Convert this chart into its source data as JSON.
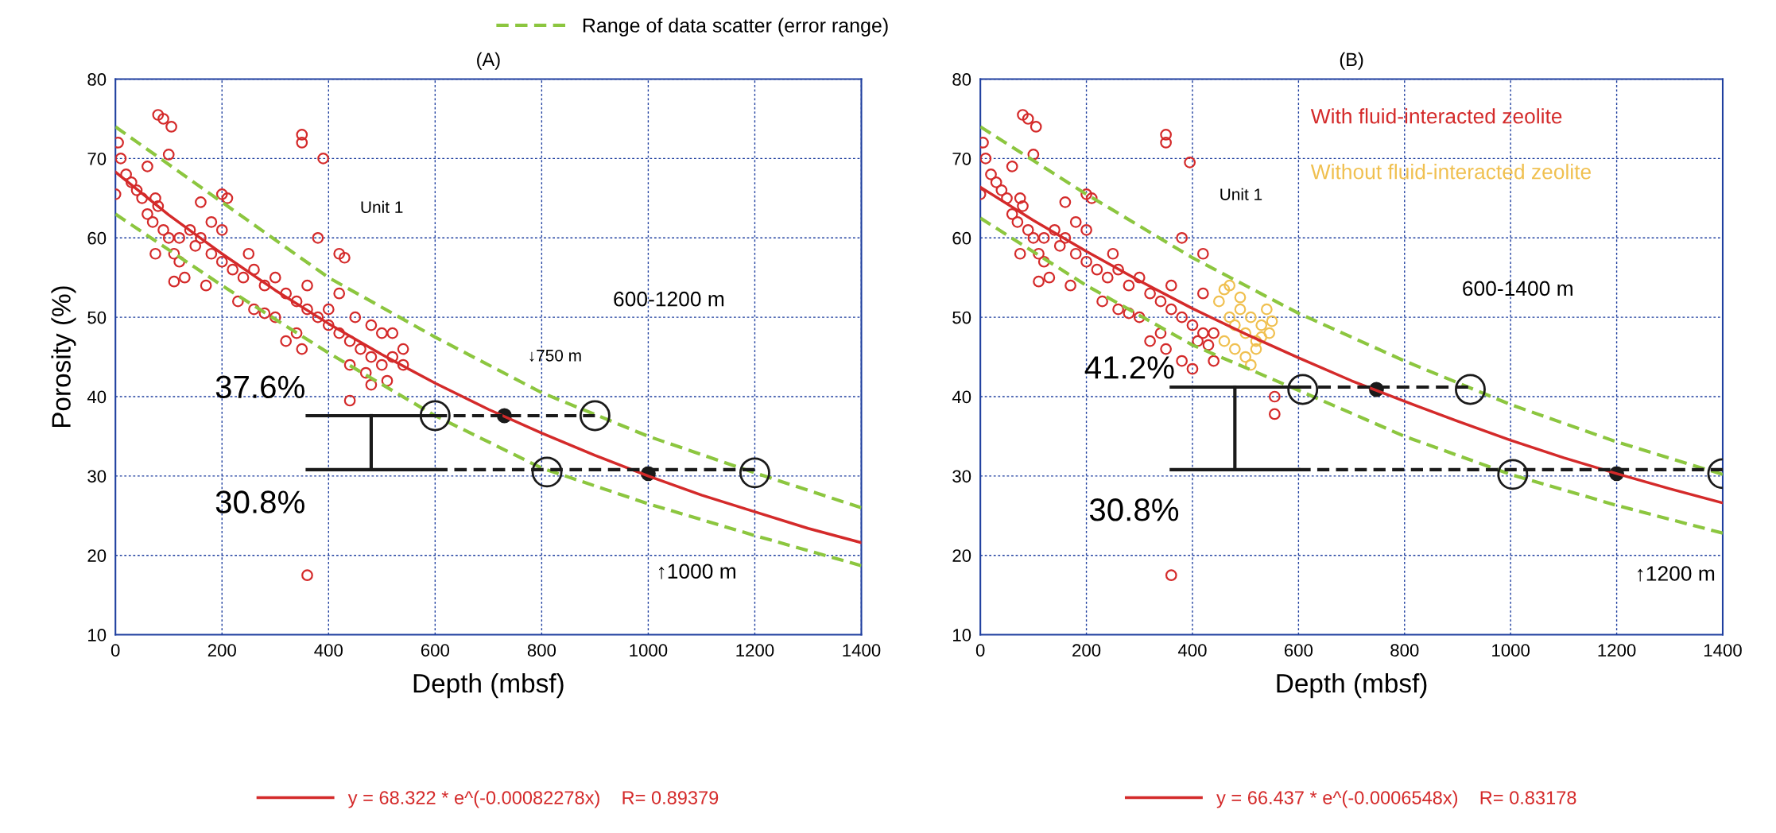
{
  "chart_data": [
    {
      "type": "scatter",
      "title": "(A)",
      "xlabel": "Depth (mbsf)",
      "ylabel": "Porosity (%)",
      "xlim": [
        0,
        1400
      ],
      "ylim": [
        10,
        80
      ],
      "xticks": [
        0,
        200,
        400,
        600,
        800,
        1000,
        1200,
        1400
      ],
      "yticks": [
        10,
        20,
        30,
        40,
        50,
        60,
        70,
        80
      ],
      "grid": true,
      "legend": "bottom",
      "series": [
        {
          "type": "scatter",
          "marker": "circle",
          "color": "#d42a2a",
          "x": [
            80,
            90,
            105,
            350,
            350,
            390,
            380,
            420,
            430,
            360,
            440,
            5,
            0,
            60,
            75,
            100,
            160,
            200,
            210,
            10,
            20,
            30,
            40,
            50,
            60,
            70,
            80,
            90,
            100,
            110,
            120,
            140,
            150,
            160,
            180,
            200,
            220,
            240,
            260,
            280,
            300,
            320,
            340,
            360,
            380,
            400,
            420,
            440,
            460,
            480,
            500,
            520,
            540,
            510,
            480,
            400,
            450,
            500,
            130,
            170,
            230,
            260,
            300,
            340,
            120,
            75,
            110,
            280,
            320,
            350,
            440,
            470,
            540,
            480,
            520,
            420,
            360,
            200,
            250,
            180
          ],
          "values": [
            75.5,
            75,
            74,
            73,
            72,
            70,
            60,
            58,
            57.5,
            17.5,
            39.5,
            72,
            65.5,
            69,
            65,
            70.5,
            64.5,
            65.5,
            65,
            70,
            68,
            67,
            66,
            65,
            63,
            62,
            64,
            61,
            60,
            58,
            60,
            61,
            59,
            60,
            58,
            57,
            56,
            55,
            56,
            54,
            55,
            53,
            52,
            51,
            50,
            49,
            48,
            47,
            46,
            45,
            44,
            45,
            44,
            42,
            41.5,
            51,
            50,
            48,
            55,
            54,
            52,
            51,
            50,
            48,
            57,
            58,
            54.5,
            50.5,
            47,
            46,
            44,
            43,
            46,
            49,
            48,
            53,
            54,
            61,
            58,
            62
          ]
        },
        {
          "type": "line",
          "name": "y = 68.322 * e^(-0.00082278x)    R= 0.89379",
          "color": "#d42a2a",
          "line_style": "solid",
          "marker": "none",
          "x": [
            0,
            100,
            200,
            300,
            400,
            500,
            600,
            700,
            800,
            900,
            1000,
            1100,
            1200,
            1300,
            1400
          ],
          "values": [
            68.3,
            62.9,
            58,
            53.4,
            49.2,
            45.3,
            41.7,
            38.4,
            35.4,
            32.6,
            30,
            27.6,
            25.5,
            23.4,
            21.6
          ]
        },
        {
          "type": "line",
          "name": "Range of data scatter (error range)",
          "color": "#8cc63f",
          "line_style": "dashed",
          "marker": "none",
          "x": [
            0,
            200,
            400,
            600,
            800,
            1000,
            1200,
            1400
          ],
          "values": [
            74,
            64.5,
            55,
            47.5,
            40.5,
            35,
            30.4,
            26
          ]
        },
        {
          "type": "line",
          "color": "#8cc63f",
          "line_style": "dashed",
          "marker": "none",
          "x": [
            0,
            200,
            400,
            600,
            800,
            1000,
            1200,
            1400
          ],
          "values": [
            63,
            54,
            45.5,
            37.6,
            31,
            26.5,
            22.5,
            18.7
          ]
        },
        {
          "type": "line",
          "color": "#1a1a1a",
          "line_style": "dashed",
          "marker": "none",
          "x": [
            600,
            900
          ],
          "values": [
            37.6,
            37.6
          ]
        },
        {
          "type": "line",
          "color": "#1a1a1a",
          "line_style": "dashed",
          "marker": "none",
          "x": [
            600,
            1200
          ],
          "values": [
            30.8,
            30.8
          ]
        },
        {
          "type": "line",
          "color": "#1a1a1a",
          "line_style": "solid",
          "marker": "none",
          "x": [
            360,
            600
          ],
          "values": [
            37.6,
            37.6
          ]
        },
        {
          "type": "line",
          "color": "#1a1a1a",
          "line_style": "solid",
          "marker": "none",
          "x": [
            360,
            600
          ],
          "values": [
            30.8,
            30.8
          ]
        },
        {
          "type": "line",
          "color": "#1a1a1a",
          "line_style": "solid",
          "marker": "none",
          "x": [
            480,
            480
          ],
          "values": [
            30.8,
            37.6
          ]
        },
        {
          "type": "scatter",
          "marker": "circle",
          "color": "#1a1a1a",
          "x": [
            600,
            900,
            810,
            1200
          ],
          "values": [
            37.6,
            37.6,
            30.5,
            30.4
          ]
        },
        {
          "type": "scatter",
          "marker": "circle",
          "color": "#1a1a1a",
          "x": [
            730,
            1000
          ],
          "values": [
            37.6,
            30.3
          ]
        }
      ],
      "annotations": [
        "Unit 1",
        "600-1200 m",
        "↓750 m",
        "↑1000 m",
        "37.6%",
        "30.8%"
      ]
    },
    {
      "type": "scatter",
      "title": "(B)",
      "xlabel": "Depth (mbsf)",
      "xlim": [
        0,
        1400
      ],
      "ylim": [
        10,
        80
      ],
      "xticks": [
        0,
        200,
        400,
        600,
        800,
        1000,
        1200,
        1400
      ],
      "yticks": [
        10,
        20,
        30,
        40,
        50,
        60,
        70,
        80
      ],
      "grid": true,
      "legend": "bottom",
      "series": [
        {
          "type": "scatter",
          "name": "With fluid-interacted zeolite",
          "marker": "circle",
          "color": "#d42a2a",
          "x": [
            80,
            90,
            105,
            350,
            350,
            395,
            380,
            420,
            360,
            555,
            555,
            400,
            380,
            440,
            5,
            0,
            60,
            75,
            100,
            160,
            200,
            210,
            10,
            20,
            30,
            40,
            50,
            60,
            70,
            80,
            90,
            100,
            110,
            120,
            140,
            150,
            160,
            180,
            200,
            220,
            240,
            260,
            280,
            300,
            320,
            340,
            360,
            380,
            400,
            420,
            440,
            130,
            170,
            230,
            260,
            300,
            340,
            120,
            75,
            110,
            280,
            320,
            350,
            420,
            360,
            200,
            250,
            180,
            410,
            430
          ],
          "values": [
            75.5,
            75,
            74,
            73,
            72,
            69.5,
            60,
            58,
            17.5,
            40,
            37.8,
            43.5,
            44.5,
            44.5,
            72,
            65.5,
            69,
            65,
            70.5,
            64.5,
            65.5,
            65,
            70,
            68,
            67,
            66,
            65,
            63,
            62,
            64,
            61,
            60,
            58,
            60,
            61,
            59,
            60,
            58,
            57,
            56,
            55,
            56,
            54,
            55,
            53,
            52,
            51,
            50,
            49,
            48,
            48,
            55,
            54,
            52,
            51,
            50,
            48,
            57,
            58,
            54.5,
            50.5,
            47,
            46,
            53,
            54,
            61,
            58,
            62,
            47,
            46.5
          ]
        },
        {
          "type": "scatter",
          "name": "Without fluid-interacted zeolite",
          "marker": "circle",
          "color": "#f0c050",
          "x": [
            450,
            460,
            470,
            480,
            490,
            500,
            510,
            520,
            530,
            540,
            550,
            460,
            480,
            500,
            510,
            520,
            470,
            490,
            530,
            545
          ],
          "values": [
            52,
            53.5,
            50,
            49,
            51,
            48,
            50,
            47,
            49,
            51,
            49.5,
            47,
            46,
            45,
            44,
            46,
            54,
            52.5,
            47.5,
            48
          ]
        },
        {
          "type": "line",
          "name": "y = 66.437 * e^(-0.0006548x)    R= 0.83178",
          "color": "#d42a2a",
          "line_style": "solid",
          "marker": "none",
          "x": [
            0,
            100,
            200,
            300,
            400,
            500,
            600,
            700,
            800,
            900,
            1000,
            1100,
            1200,
            1300,
            1400
          ],
          "values": [
            66.4,
            62.2,
            58.3,
            54.6,
            51.1,
            47.9,
            44.9,
            42,
            39.4,
            36.9,
            34.5,
            32.3,
            30.3,
            28.4,
            26.6
          ]
        },
        {
          "type": "line",
          "color": "#8cc63f",
          "line_style": "dashed",
          "marker": "none",
          "x": [
            0,
            200,
            400,
            600,
            800,
            1000,
            1200,
            1400
          ],
          "values": [
            74,
            65.5,
            57.5,
            50.5,
            44.5,
            39,
            34.3,
            30.2
          ]
        },
        {
          "type": "line",
          "color": "#8cc63f",
          "line_style": "dashed",
          "marker": "none",
          "x": [
            0,
            200,
            400,
            600,
            800,
            1000,
            1200,
            1400
          ],
          "values": [
            62.5,
            54,
            46.5,
            40.8,
            35,
            30.2,
            26.3,
            22.8
          ]
        },
        {
          "type": "line",
          "color": "#1a1a1a",
          "line_style": "dashed",
          "marker": "none",
          "x": [
            600,
            920
          ],
          "values": [
            41.2,
            41.2
          ]
        },
        {
          "type": "line",
          "color": "#1a1a1a",
          "line_style": "dashed",
          "marker": "none",
          "x": [
            600,
            1400
          ],
          "values": [
            30.8,
            30.8
          ]
        },
        {
          "type": "line",
          "color": "#1a1a1a",
          "line_style": "solid",
          "marker": "none",
          "x": [
            360,
            600
          ],
          "values": [
            41.2,
            41.2
          ]
        },
        {
          "type": "line",
          "color": "#1a1a1a",
          "line_style": "solid",
          "marker": "none",
          "x": [
            360,
            600
          ],
          "values": [
            30.8,
            30.8
          ]
        },
        {
          "type": "line",
          "color": "#1a1a1a",
          "line_style": "solid",
          "marker": "none",
          "x": [
            480,
            480
          ],
          "values": [
            30.8,
            41.2
          ]
        },
        {
          "type": "scatter",
          "marker": "circle",
          "color": "#1a1a1a",
          "x": [
            608,
            924,
            1004,
            1400
          ],
          "values": [
            40.9,
            40.9,
            30.2,
            30.3
          ]
        },
        {
          "type": "scatter",
          "marker": "circle",
          "color": "#1a1a1a",
          "x": [
            747,
            1200
          ],
          "values": [
            40.9,
            30.3
          ]
        }
      ],
      "annotations": [
        "Unit 1",
        "600-1400 m",
        "↑1200 m",
        "41.2%",
        "30.8%"
      ]
    }
  ]
}
